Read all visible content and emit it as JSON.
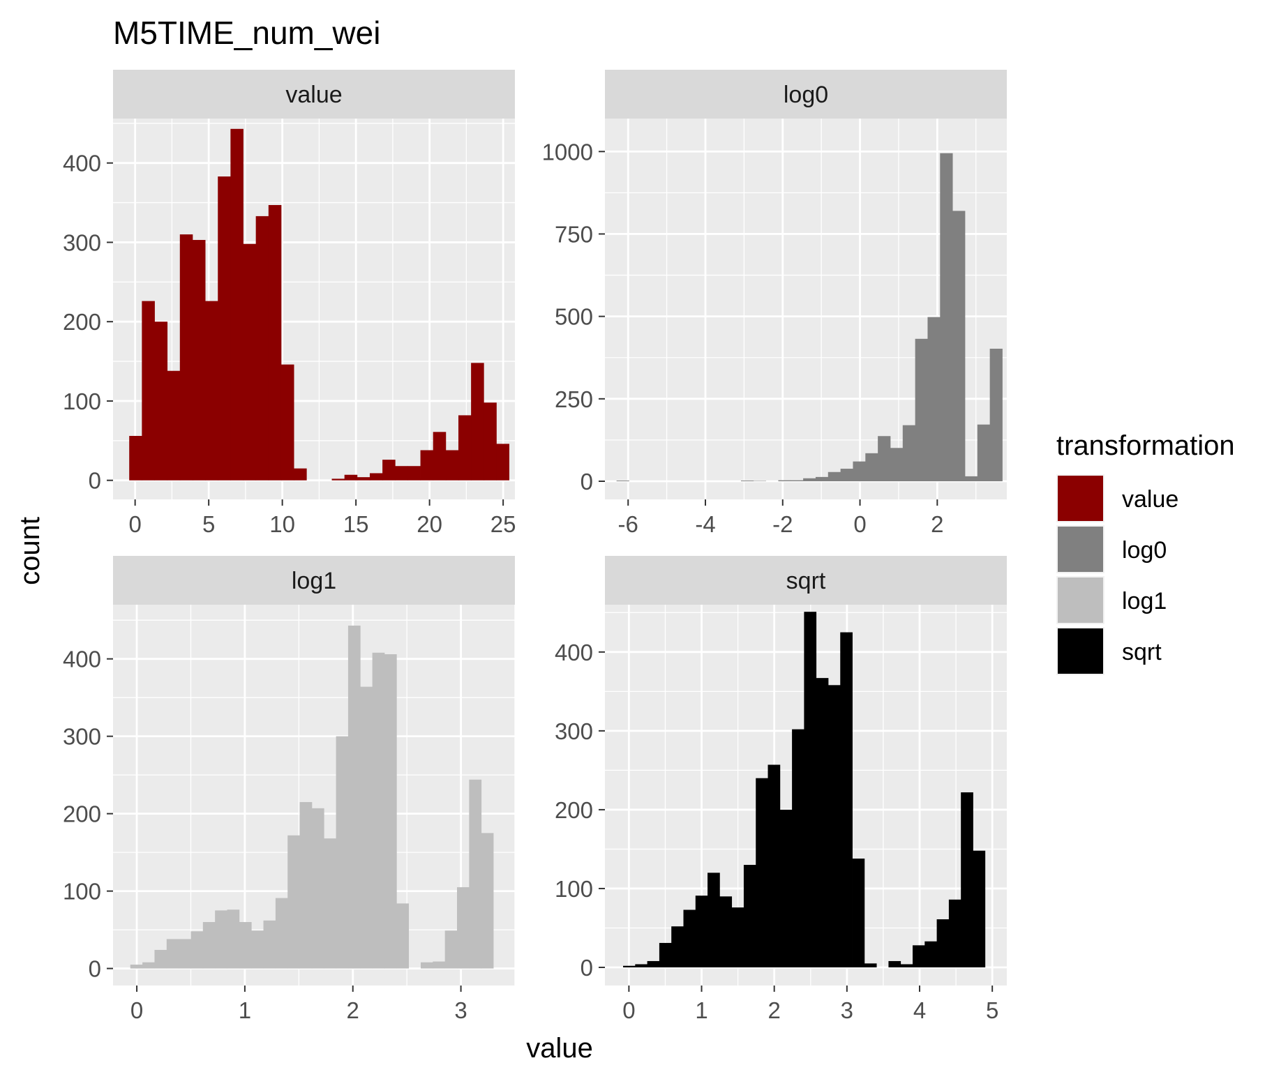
{
  "title": "M5TIME_num_wei",
  "xlabel": "value",
  "ylabel": "count",
  "legend": {
    "title": "transformation",
    "placement": "right",
    "items": [
      {
        "label": "value",
        "color": "#8B0000"
      },
      {
        "label": "log0",
        "color": "#808080"
      },
      {
        "label": "log1",
        "color": "#BEBEBE"
      },
      {
        "label": "sqrt",
        "color": "#000000"
      }
    ]
  },
  "colors": {
    "panel_background": "#EBEBEB",
    "strip_background": "#D9D9D9",
    "grid": "#FFFFFF",
    "tick_text": "#4D4D4D"
  },
  "chart_data": [
    {
      "type": "bar",
      "panel": "value",
      "strip_label": "value",
      "color": "#8B0000",
      "xlim": [
        -1.5,
        25.8
      ],
      "ylim": [
        -24,
        456
      ],
      "xticks": [
        0,
        5,
        10,
        15,
        20,
        25
      ],
      "xtick_labels": [
        "0",
        "5",
        "10",
        "15",
        "20",
        "25"
      ],
      "yticks": [
        0,
        100,
        200,
        300,
        400
      ],
      "ytick_labels": [
        "0",
        "100",
        "200",
        "300",
        "400"
      ],
      "bin_start": -0.4,
      "bin_width": 0.86,
      "values": [
        56,
        226,
        200,
        138,
        310,
        303,
        226,
        383,
        443,
        298,
        333,
        347,
        146,
        15,
        0,
        0,
        2,
        7,
        4,
        9,
        26,
        18,
        18,
        38,
        61,
        38,
        82,
        148,
        98,
        46
      ]
    },
    {
      "type": "bar",
      "panel": "log0",
      "strip_label": "log0",
      "color": "#808080",
      "xlim": [
        -6.6,
        3.8
      ],
      "ylim": [
        -55,
        1100
      ],
      "xticks": [
        -6,
        -4,
        -2,
        0,
        2
      ],
      "xtick_labels": [
        "-6",
        "-4",
        "-2",
        "0",
        "2"
      ],
      "yticks": [
        0,
        250,
        500,
        750,
        1000
      ],
      "ytick_labels": [
        "0",
        "250",
        "500",
        "750",
        "1000"
      ],
      "bin_start": -6.3,
      "bin_width": 0.322,
      "values": [
        2,
        0,
        0,
        0,
        0,
        0,
        0,
        0,
        0,
        0,
        2,
        1,
        0,
        3,
        3,
        9,
        13,
        28,
        38,
        60,
        85,
        137,
        101,
        170,
        432,
        498,
        995,
        820,
        15,
        172,
        402
      ]
    },
    {
      "type": "bar",
      "panel": "log1",
      "strip_label": "log1",
      "color": "#BEBEBE",
      "xlim": [
        -0.22,
        3.5
      ],
      "ylim": [
        -22,
        470
      ],
      "xticks": [
        0,
        1,
        2,
        3
      ],
      "xtick_labels": [
        "0",
        "1",
        "2",
        "3"
      ],
      "yticks": [
        0,
        100,
        200,
        300,
        400
      ],
      "ytick_labels": [
        "0",
        "100",
        "200",
        "300",
        "400"
      ],
      "bin_start": -0.06,
      "bin_width": 0.112,
      "values": [
        5,
        8,
        24,
        38,
        38,
        48,
        60,
        75,
        76,
        60,
        49,
        62,
        91,
        172,
        215,
        207,
        168,
        300,
        443,
        364,
        408,
        406,
        84,
        0,
        8,
        9,
        49,
        105,
        244,
        175
      ]
    },
    {
      "type": "bar",
      "panel": "sqrt",
      "strip_label": "sqrt",
      "color": "#000000",
      "xlim": [
        -0.33,
        5.2
      ],
      "ylim": [
        -23,
        460
      ],
      "xticks": [
        0,
        1,
        2,
        3,
        4,
        5
      ],
      "xtick_labels": [
        "0",
        "1",
        "2",
        "3",
        "4",
        "5"
      ],
      "yticks": [
        0,
        100,
        200,
        300,
        400
      ],
      "ytick_labels": [
        "0",
        "100",
        "200",
        "300",
        "400"
      ],
      "bin_start": -0.08,
      "bin_width": 0.166,
      "values": [
        2,
        4,
        8,
        31,
        52,
        73,
        91,
        120,
        90,
        76,
        130,
        240,
        257,
        200,
        302,
        451,
        367,
        358,
        425,
        138,
        5,
        0,
        8,
        4,
        28,
        33,
        61,
        86,
        222,
        148
      ]
    }
  ]
}
